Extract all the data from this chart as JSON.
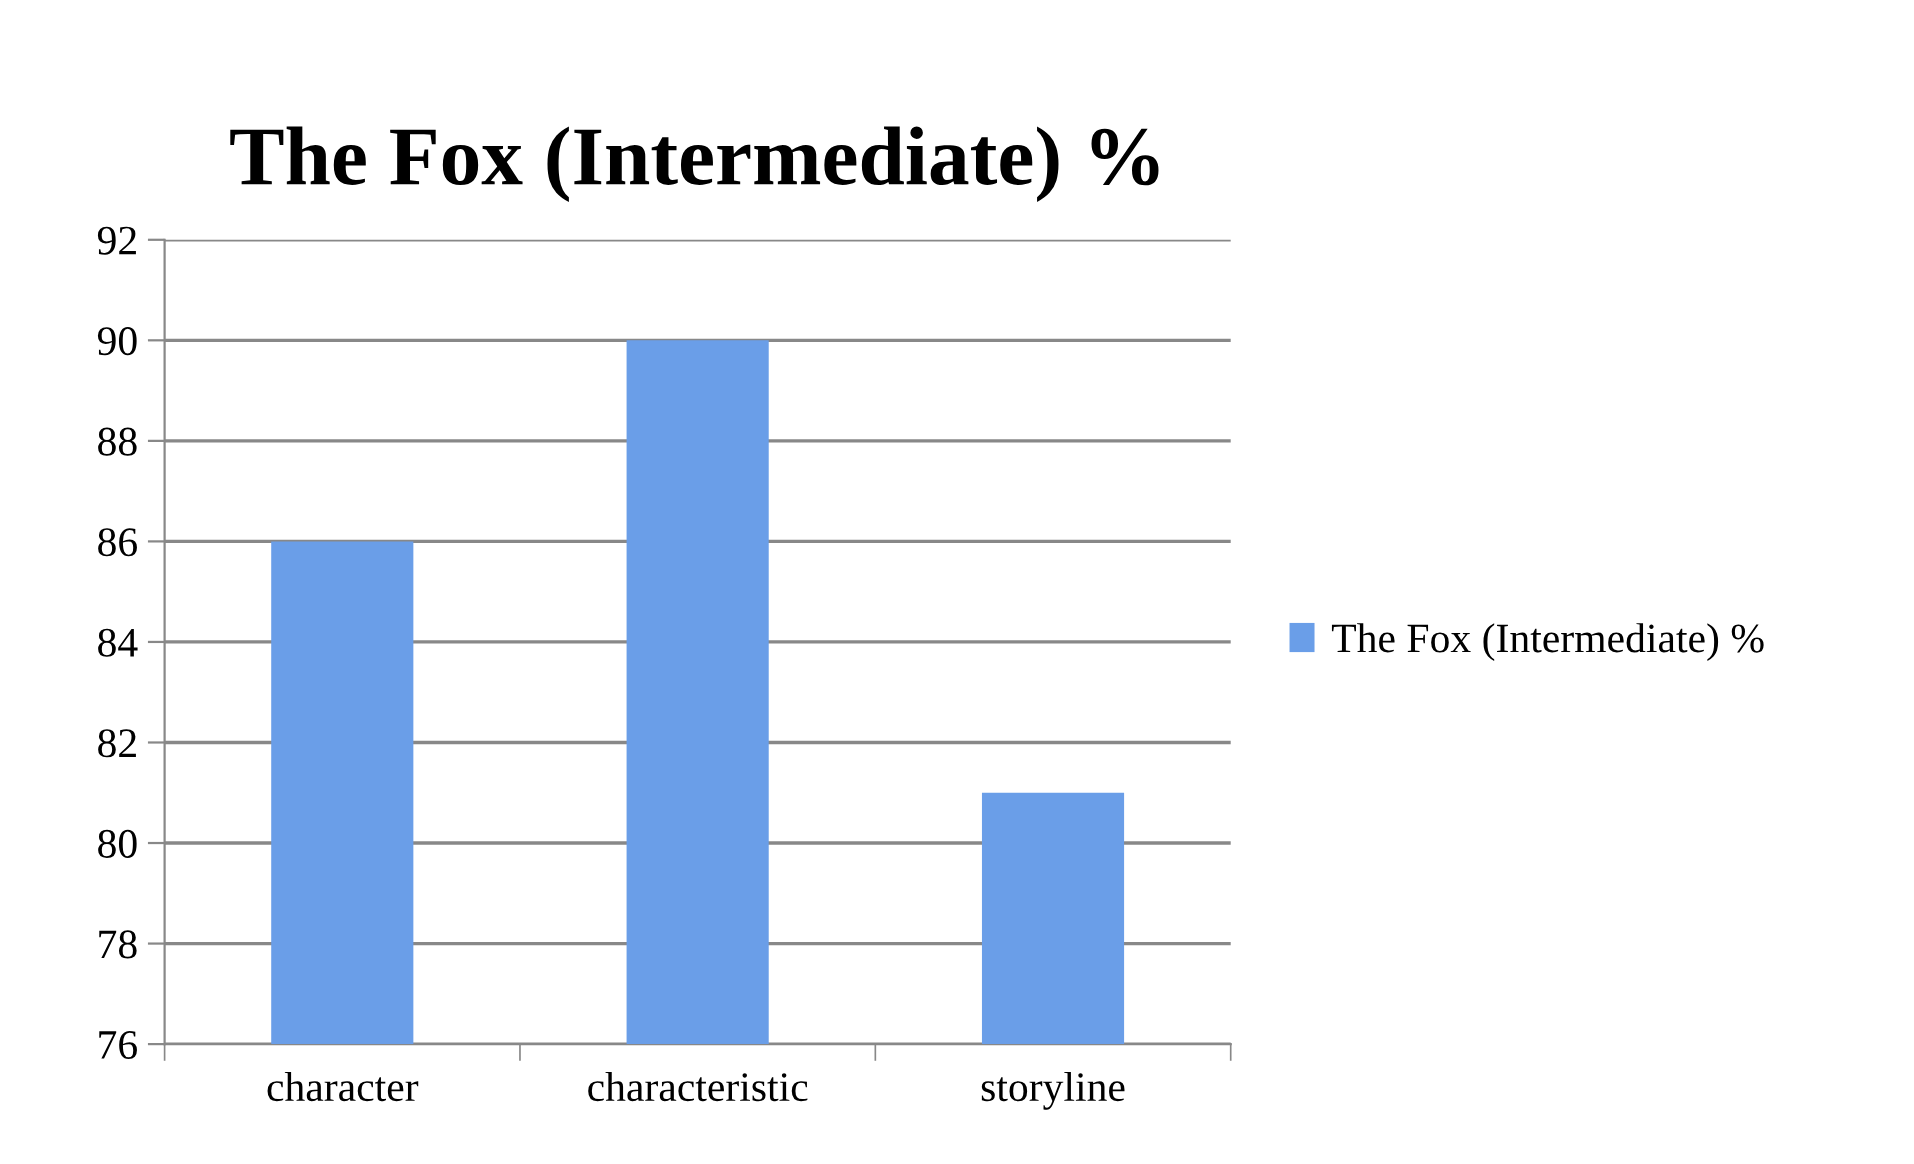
{
  "chart_data": {
    "type": "bar",
    "title": "The Fox (Intermediate) %",
    "categories": [
      "character",
      "characteristic",
      "storyline"
    ],
    "series": [
      {
        "name": "The Fox (Intermediate) %",
        "color": "#6a9ee8",
        "values": [
          86,
          90,
          81
        ]
      }
    ],
    "ylim": [
      76,
      92
    ],
    "yticks": [
      76,
      78,
      80,
      82,
      84,
      86,
      88,
      90,
      92
    ],
    "grid": "y",
    "legend": "right"
  }
}
